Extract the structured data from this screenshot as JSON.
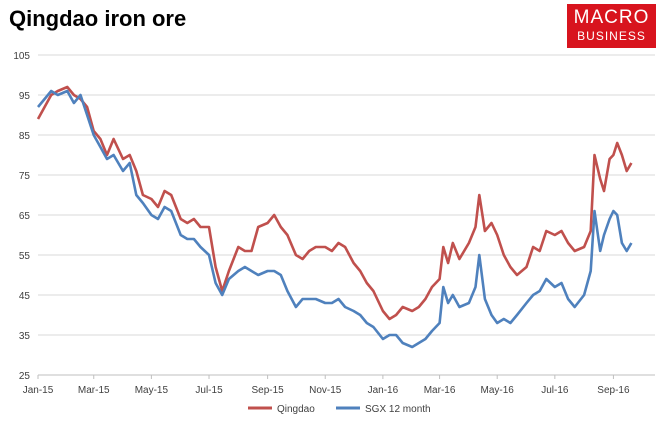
{
  "logo": {
    "line1": "MACRO",
    "line2": "BUSINESS"
  },
  "chart_data": {
    "type": "line",
    "title": "Qingdao iron ore",
    "xlabel": "",
    "ylabel": "",
    "ylim": [
      25,
      105
    ],
    "yticks": [
      25,
      35,
      45,
      55,
      65,
      75,
      85,
      95,
      105
    ],
    "xlim": [
      "2015-01-01",
      "2016-10-15"
    ],
    "xticks": [
      {
        "date": "2015-01-01",
        "label": "Jan-15"
      },
      {
        "date": "2015-03-01",
        "label": "Mar-15"
      },
      {
        "date": "2015-05-01",
        "label": "May-15"
      },
      {
        "date": "2015-07-01",
        "label": "Jul-15"
      },
      {
        "date": "2015-09-01",
        "label": "Sep-15"
      },
      {
        "date": "2015-11-01",
        "label": "Nov-15"
      },
      {
        "date": "2016-01-01",
        "label": "Jan-16"
      },
      {
        "date": "2016-03-01",
        "label": "Mar-16"
      },
      {
        "date": "2016-05-01",
        "label": "May-16"
      },
      {
        "date": "2016-07-01",
        "label": "Jul-16"
      },
      {
        "date": "2016-09-01",
        "label": "Sep-16"
      }
    ],
    "grid": true,
    "legend": "bottom",
    "series": [
      {
        "name": "Qingdao",
        "color": "#c0504d",
        "points": [
          [
            "2015-01-01",
            89
          ],
          [
            "2015-01-08",
            92
          ],
          [
            "2015-01-15",
            95
          ],
          [
            "2015-01-22",
            96
          ],
          [
            "2015-02-01",
            97
          ],
          [
            "2015-02-08",
            95
          ],
          [
            "2015-02-15",
            94
          ],
          [
            "2015-02-22",
            92
          ],
          [
            "2015-03-01",
            86
          ],
          [
            "2015-03-08",
            84
          ],
          [
            "2015-03-15",
            80
          ],
          [
            "2015-03-22",
            84
          ],
          [
            "2015-04-01",
            79
          ],
          [
            "2015-04-08",
            80
          ],
          [
            "2015-04-15",
            76
          ],
          [
            "2015-04-22",
            70
          ],
          [
            "2015-05-01",
            69
          ],
          [
            "2015-05-08",
            67
          ],
          [
            "2015-05-15",
            71
          ],
          [
            "2015-05-22",
            70
          ],
          [
            "2015-06-01",
            64
          ],
          [
            "2015-06-08",
            63
          ],
          [
            "2015-06-15",
            64
          ],
          [
            "2015-06-22",
            62
          ],
          [
            "2015-07-01",
            62
          ],
          [
            "2015-07-08",
            52
          ],
          [
            "2015-07-15",
            46
          ],
          [
            "2015-07-22",
            51
          ],
          [
            "2015-08-01",
            57
          ],
          [
            "2015-08-08",
            56
          ],
          [
            "2015-08-15",
            56
          ],
          [
            "2015-08-22",
            62
          ],
          [
            "2015-09-01",
            63
          ],
          [
            "2015-09-08",
            65
          ],
          [
            "2015-09-15",
            62
          ],
          [
            "2015-09-22",
            60
          ],
          [
            "2015-10-01",
            55
          ],
          [
            "2015-10-08",
            54
          ],
          [
            "2015-10-15",
            56
          ],
          [
            "2015-10-22",
            57
          ],
          [
            "2015-11-01",
            57
          ],
          [
            "2015-11-08",
            56
          ],
          [
            "2015-11-15",
            58
          ],
          [
            "2015-11-22",
            57
          ],
          [
            "2015-12-01",
            53
          ],
          [
            "2015-12-08",
            51
          ],
          [
            "2015-12-15",
            48
          ],
          [
            "2015-12-22",
            46
          ],
          [
            "2016-01-01",
            41
          ],
          [
            "2016-01-08",
            39
          ],
          [
            "2016-01-15",
            40
          ],
          [
            "2016-01-22",
            42
          ],
          [
            "2016-02-01",
            41
          ],
          [
            "2016-02-08",
            42
          ],
          [
            "2016-02-15",
            44
          ],
          [
            "2016-02-22",
            47
          ],
          [
            "2016-03-01",
            49
          ],
          [
            "2016-03-05",
            57
          ],
          [
            "2016-03-10",
            53
          ],
          [
            "2016-03-15",
            58
          ],
          [
            "2016-03-22",
            54
          ],
          [
            "2016-04-01",
            58
          ],
          [
            "2016-04-08",
            62
          ],
          [
            "2016-04-12",
            70
          ],
          [
            "2016-04-18",
            61
          ],
          [
            "2016-04-25",
            63
          ],
          [
            "2016-05-01",
            60
          ],
          [
            "2016-05-08",
            55
          ],
          [
            "2016-05-15",
            52
          ],
          [
            "2016-05-22",
            50
          ],
          [
            "2016-06-01",
            52
          ],
          [
            "2016-06-08",
            57
          ],
          [
            "2016-06-15",
            56
          ],
          [
            "2016-06-22",
            61
          ],
          [
            "2016-07-01",
            60
          ],
          [
            "2016-07-08",
            61
          ],
          [
            "2016-07-15",
            58
          ],
          [
            "2016-07-22",
            56
          ],
          [
            "2016-08-01",
            57
          ],
          [
            "2016-08-08",
            61
          ],
          [
            "2016-08-12",
            80
          ],
          [
            "2016-08-18",
            74
          ],
          [
            "2016-08-22",
            71
          ],
          [
            "2016-08-28",
            79
          ],
          [
            "2016-09-01",
            80
          ],
          [
            "2016-09-05",
            83
          ],
          [
            "2016-09-10",
            80
          ],
          [
            "2016-09-15",
            76
          ],
          [
            "2016-09-20",
            78
          ]
        ]
      },
      {
        "name": "SGX 12 month",
        "color": "#4f81bd",
        "points": [
          [
            "2015-01-01",
            92
          ],
          [
            "2015-01-08",
            94
          ],
          [
            "2015-01-15",
            96
          ],
          [
            "2015-01-22",
            95
          ],
          [
            "2015-02-01",
            96
          ],
          [
            "2015-02-08",
            93
          ],
          [
            "2015-02-15",
            95
          ],
          [
            "2015-02-22",
            90
          ],
          [
            "2015-03-01",
            85
          ],
          [
            "2015-03-08",
            82
          ],
          [
            "2015-03-15",
            79
          ],
          [
            "2015-03-22",
            80
          ],
          [
            "2015-04-01",
            76
          ],
          [
            "2015-04-08",
            78
          ],
          [
            "2015-04-15",
            70
          ],
          [
            "2015-04-22",
            68
          ],
          [
            "2015-05-01",
            65
          ],
          [
            "2015-05-08",
            64
          ],
          [
            "2015-05-15",
            67
          ],
          [
            "2015-05-22",
            66
          ],
          [
            "2015-06-01",
            60
          ],
          [
            "2015-06-08",
            59
          ],
          [
            "2015-06-15",
            59
          ],
          [
            "2015-06-22",
            57
          ],
          [
            "2015-07-01",
            55
          ],
          [
            "2015-07-08",
            48
          ],
          [
            "2015-07-15",
            45
          ],
          [
            "2015-07-22",
            49
          ],
          [
            "2015-08-01",
            51
          ],
          [
            "2015-08-08",
            52
          ],
          [
            "2015-08-15",
            51
          ],
          [
            "2015-08-22",
            50
          ],
          [
            "2015-09-01",
            51
          ],
          [
            "2015-09-08",
            51
          ],
          [
            "2015-09-15",
            50
          ],
          [
            "2015-09-22",
            46
          ],
          [
            "2015-10-01",
            42
          ],
          [
            "2015-10-08",
            44
          ],
          [
            "2015-10-15",
            44
          ],
          [
            "2015-10-22",
            44
          ],
          [
            "2015-11-01",
            43
          ],
          [
            "2015-11-08",
            43
          ],
          [
            "2015-11-15",
            44
          ],
          [
            "2015-11-22",
            42
          ],
          [
            "2015-12-01",
            41
          ],
          [
            "2015-12-08",
            40
          ],
          [
            "2015-12-15",
            38
          ],
          [
            "2015-12-22",
            37
          ],
          [
            "2016-01-01",
            34
          ],
          [
            "2016-01-08",
            35
          ],
          [
            "2016-01-15",
            35
          ],
          [
            "2016-01-22",
            33
          ],
          [
            "2016-02-01",
            32
          ],
          [
            "2016-02-08",
            33
          ],
          [
            "2016-02-15",
            34
          ],
          [
            "2016-02-22",
            36
          ],
          [
            "2016-03-01",
            38
          ],
          [
            "2016-03-05",
            47
          ],
          [
            "2016-03-10",
            43
          ],
          [
            "2016-03-15",
            45
          ],
          [
            "2016-03-22",
            42
          ],
          [
            "2016-04-01",
            43
          ],
          [
            "2016-04-08",
            47
          ],
          [
            "2016-04-12",
            55
          ],
          [
            "2016-04-18",
            44
          ],
          [
            "2016-04-25",
            40
          ],
          [
            "2016-05-01",
            38
          ],
          [
            "2016-05-08",
            39
          ],
          [
            "2016-05-15",
            38
          ],
          [
            "2016-05-22",
            40
          ],
          [
            "2016-06-01",
            43
          ],
          [
            "2016-06-08",
            45
          ],
          [
            "2016-06-15",
            46
          ],
          [
            "2016-06-22",
            49
          ],
          [
            "2016-07-01",
            47
          ],
          [
            "2016-07-08",
            48
          ],
          [
            "2016-07-15",
            44
          ],
          [
            "2016-07-22",
            42
          ],
          [
            "2016-08-01",
            45
          ],
          [
            "2016-08-08",
            51
          ],
          [
            "2016-08-12",
            66
          ],
          [
            "2016-08-18",
            56
          ],
          [
            "2016-08-22",
            60
          ],
          [
            "2016-08-28",
            64
          ],
          [
            "2016-09-01",
            66
          ],
          [
            "2016-09-05",
            65
          ],
          [
            "2016-09-10",
            58
          ],
          [
            "2016-09-15",
            56
          ],
          [
            "2016-09-20",
            58
          ]
        ]
      }
    ]
  }
}
